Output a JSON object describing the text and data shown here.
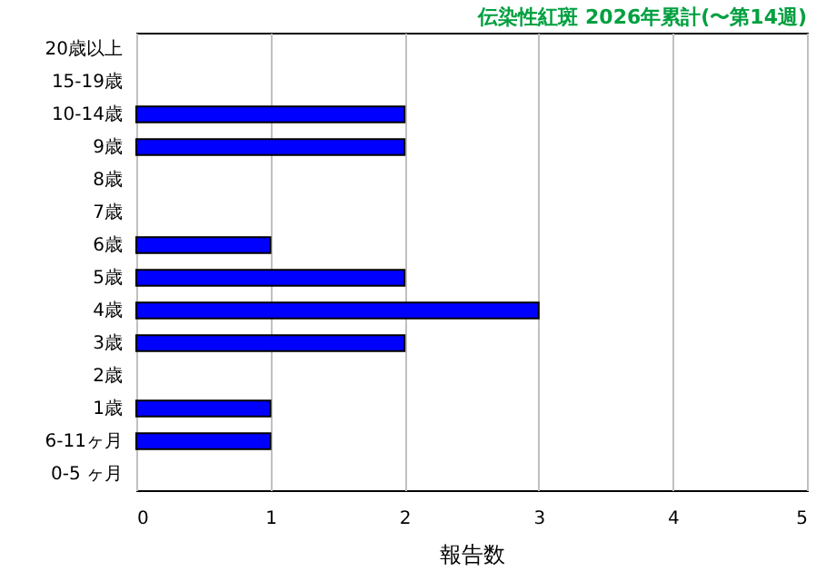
{
  "chart_data": {
    "type": "bar",
    "orientation": "horizontal",
    "title": "伝染性紅斑 2026年累計(〜第14週)",
    "xlabel": "報告数",
    "categories": [
      "20歳以上",
      "15-19歳",
      "10-14歳",
      "9歳",
      "8歳",
      "7歳",
      "6歳",
      "5歳",
      "4歳",
      "3歳",
      "2歳",
      "1歳",
      "6-11ヶ月",
      "0-5 ヶ月"
    ],
    "values": [
      0,
      0,
      2,
      2,
      0,
      0,
      1,
      2,
      3,
      2,
      0,
      1,
      1,
      0
    ],
    "color": "#0000ff",
    "xlim": [
      0,
      5
    ],
    "xticks": [
      0,
      1,
      2,
      3,
      4,
      5
    ],
    "grid": "x"
  }
}
